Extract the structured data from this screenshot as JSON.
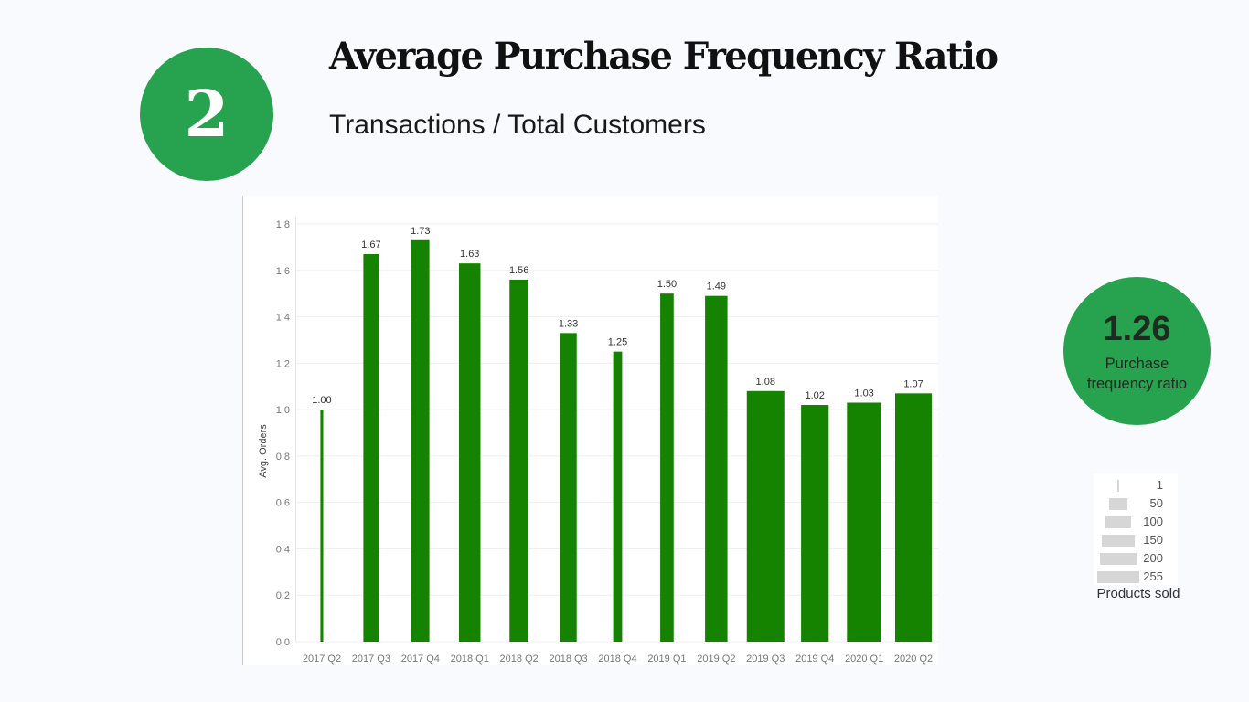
{
  "header": {
    "step_number": "2",
    "title": "Average Purchase Frequency Ratio",
    "subtitle": "Transactions / Total Customers"
  },
  "kpi": {
    "value": "1.26",
    "label": "Purchase frequency ratio"
  },
  "size_legend": {
    "title": "Products sold",
    "items": [
      {
        "label": "1",
        "value": 1
      },
      {
        "label": "50",
        "value": 50
      },
      {
        "label": "100",
        "value": 100
      },
      {
        "label": "150",
        "value": 150
      },
      {
        "label": "200",
        "value": 200
      },
      {
        "label": "255",
        "value": 255
      }
    ]
  },
  "colors": {
    "accent": "#27a24e",
    "bar": "#168300",
    "legend_bar": "#d6d6d6"
  },
  "chart_data": {
    "type": "bar",
    "title": "",
    "xlabel": "",
    "ylabel": "Avg. Orders",
    "ylim": [
      0,
      1.8
    ],
    "yticks": [
      "0.0",
      "0.2",
      "0.4",
      "0.6",
      "0.8",
      "1.0",
      "1.2",
      "1.4",
      "1.6",
      "1.8"
    ],
    "grid": true,
    "bar_width_encodes": "Products sold",
    "categories": [
      "2017 Q2",
      "2017 Q3",
      "2017 Q4",
      "2018 Q1",
      "2018 Q2",
      "2018 Q3",
      "2018 Q4",
      "2019 Q1",
      "2019 Q2",
      "2019 Q3",
      "2019 Q4",
      "2020 Q1",
      "2020 Q2"
    ],
    "values": [
      1.0,
      1.67,
      1.73,
      1.63,
      1.56,
      1.33,
      1.25,
      1.5,
      1.49,
      1.08,
      1.02,
      1.03,
      1.07
    ],
    "data_labels": [
      "1.00",
      "1.67",
      "1.73",
      "1.63",
      "1.56",
      "1.33",
      "1.25",
      "1.50",
      "1.49",
      "1.08",
      "1.02",
      "1.03",
      "1.07"
    ],
    "products_sold": [
      2,
      60,
      80,
      115,
      90,
      70,
      20,
      45,
      125,
      350,
      190,
      295,
      335
    ]
  }
}
